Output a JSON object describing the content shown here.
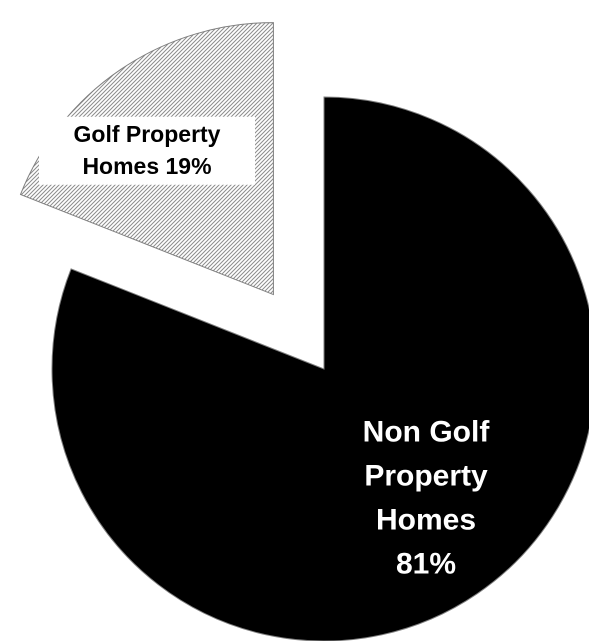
{
  "chart_data": {
    "type": "pie",
    "title": "",
    "slices": [
      {
        "name": "Non Golf Property Homes",
        "value": 81,
        "label_lines": [
          "Non Golf",
          "Property",
          "Homes",
          "81%"
        ],
        "color": "#000000",
        "label_color": "#ffffff",
        "pattern": "solid",
        "exploded": false
      },
      {
        "name": "Golf Property Homes",
        "value": 19,
        "label_lines": [
          "Golf Property",
          "Homes 19%"
        ],
        "color": "#d9d9d9",
        "label_color": "#000000",
        "pattern": "diagonal-hatch",
        "exploded": true
      }
    ],
    "start_angle_deg": 0,
    "direction": "clockwise",
    "legend": "none"
  }
}
